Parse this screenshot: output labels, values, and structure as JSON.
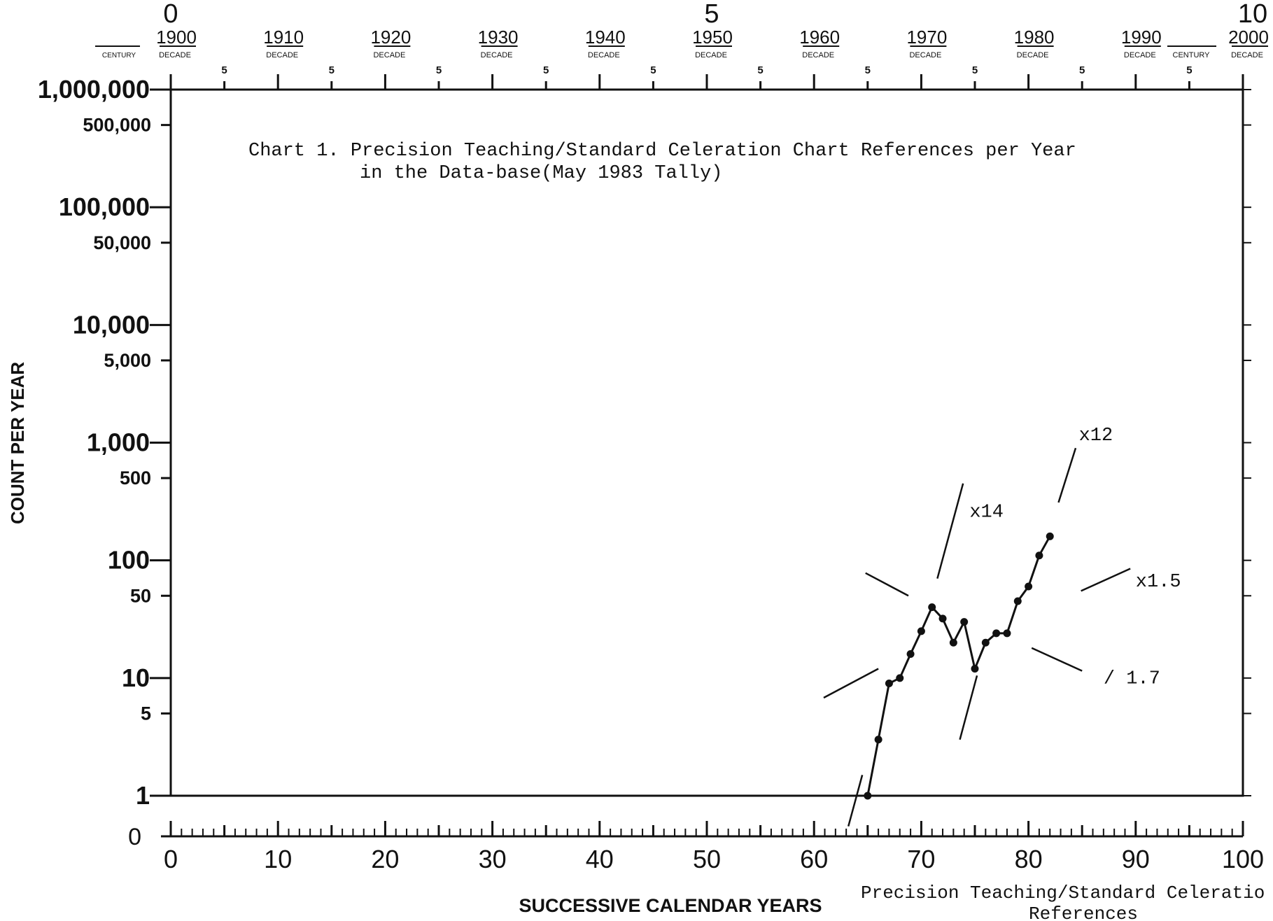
{
  "chart_data": {
    "type": "line",
    "title_line1": "Chart 1.  Precision Teaching/Standard Celeration Chart References per Year",
    "title_line2": "in the Data-base(May 1983 Tally)",
    "xlabel": "SUCCESSIVE CALENDAR YEARS",
    "ylabel": "COUNT PER YEAR",
    "series_label_line1": "Precision Teaching/Standard Celeratio",
    "series_label_line2": "References",
    "x_scale": "linear",
    "y_scale": "log",
    "xlim": [
      0,
      100
    ],
    "ylim": [
      1,
      1000000
    ],
    "y_ticks": [
      {
        "value": 1000000,
        "label": "1,000,000"
      },
      {
        "value": 500000,
        "label": "500,000"
      },
      {
        "value": 100000,
        "label": "100,000"
      },
      {
        "value": 50000,
        "label": "50,000"
      },
      {
        "value": 10000,
        "label": "10,000"
      },
      {
        "value": 5000,
        "label": "5,000"
      },
      {
        "value": 1000,
        "label": "1,000"
      },
      {
        "value": 500,
        "label": "500"
      },
      {
        "value": 100,
        "label": "100"
      },
      {
        "value": 50,
        "label": "50"
      },
      {
        "value": 10,
        "label": "10"
      },
      {
        "value": 5,
        "label": "5"
      },
      {
        "value": 1,
        "label": "1"
      }
    ],
    "y_zero_label": "0",
    "x_ticks": [
      0,
      10,
      20,
      30,
      40,
      50,
      60,
      70,
      80,
      90,
      100
    ],
    "top_century_labels": [
      {
        "x": 0,
        "label": "0"
      },
      {
        "x": 50,
        "label": "5"
      },
      {
        "x": 100,
        "label": "10"
      }
    ],
    "top_decade_labels": [
      {
        "x": 0,
        "year": "1900",
        "sub": "DECADE"
      },
      {
        "x": 10,
        "year": "1910",
        "sub": "DECADE"
      },
      {
        "x": 20,
        "year": "1920",
        "sub": "DECADE"
      },
      {
        "x": 30,
        "year": "1930",
        "sub": "DECADE"
      },
      {
        "x": 40,
        "year": "1940",
        "sub": "DECADE"
      },
      {
        "x": 50,
        "year": "1950",
        "sub": "DECADE"
      },
      {
        "x": 60,
        "year": "1960",
        "sub": "DECADE"
      },
      {
        "x": 70,
        "year": "1970",
        "sub": "DECADE"
      },
      {
        "x": 80,
        "year": "1980",
        "sub": "DECADE"
      },
      {
        "x": 90,
        "year": "1990",
        "sub": "DECADE"
      },
      {
        "x": 100,
        "year": "2000",
        "sub": "DECADE"
      }
    ],
    "top_century_sub_left": "CENTURY",
    "top_century_sub_right": "CENTURY",
    "top_five_label": "5",
    "series": [
      {
        "x": [
          65,
          66,
          67,
          68,
          69,
          70,
          71,
          72,
          73,
          74,
          75,
          76,
          77,
          78,
          79,
          80,
          81,
          82
        ],
        "y": [
          1,
          3,
          9,
          10,
          16,
          25,
          40,
          32,
          20,
          30,
          12,
          20,
          24,
          24,
          45,
          60,
          110,
          160
        ]
      }
    ],
    "celeration_labels": [
      {
        "text": "x14",
        "x": 74.5,
        "y": 235
      },
      {
        "text": "x12",
        "x": 84.7,
        "y": 1050
      },
      {
        "text": "x1.5",
        "x": 90,
        "y": 60
      },
      {
        "text": "/ 1.7",
        "x": 87,
        "y": 9
      }
    ],
    "celeration_lines": [
      {
        "x1": 63.2,
        "y1": 0.55,
        "x2": 64.5,
        "y2": 1.5
      },
      {
        "x1": 60.9,
        "y1": 6.8,
        "x2": 66,
        "y2": 12
      },
      {
        "x1": 64.8,
        "y1": 78,
        "x2": 68.8,
        "y2": 50
      },
      {
        "x1": 73.6,
        "y1": 3,
        "x2": 75.2,
        "y2": 10.5
      },
      {
        "x1": 71.5,
        "y1": 70,
        "x2": 73.9,
        "y2": 450
      },
      {
        "x1": 80.3,
        "y1": 18,
        "x2": 85,
        "y2": 11.5
      },
      {
        "x1": 84.9,
        "y1": 55,
        "x2": 89.5,
        "y2": 85
      },
      {
        "x1": 82.8,
        "y1": 310,
        "x2": 84.4,
        "y2": 900
      }
    ],
    "grid": false,
    "legend": "none"
  }
}
